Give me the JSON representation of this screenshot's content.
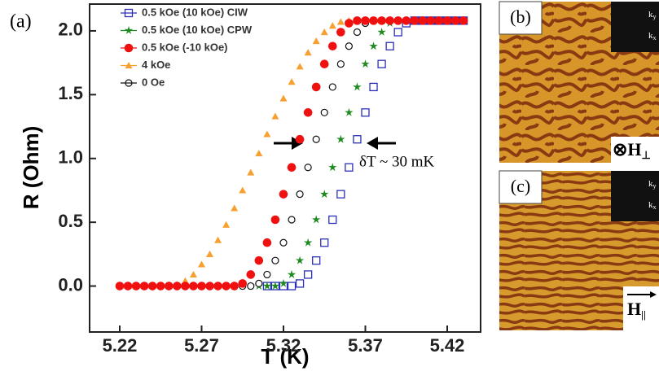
{
  "chart_data": {
    "type": "scatter",
    "panel_label": "(a)",
    "x_label": "T (K)",
    "y_label": "R (Ohm)",
    "annotation": "δT ~ 30 mK",
    "x": [
      5.22,
      5.225,
      5.23,
      5.235,
      5.24,
      5.245,
      5.25,
      5.255,
      5.26,
      5.265,
      5.27,
      5.275,
      5.28,
      5.285,
      5.29,
      5.295,
      5.3,
      5.305,
      5.31,
      5.315,
      5.32,
      5.325,
      5.33,
      5.335,
      5.34,
      5.345,
      5.35,
      5.355,
      5.36,
      5.365,
      5.37,
      5.375,
      5.38,
      5.385,
      5.39,
      5.395,
      5.4,
      5.405,
      5.41,
      5.415,
      5.42,
      5.425,
      5.43
    ],
    "series": [
      {
        "name": "0.5 kOe (10 kOe) CIW",
        "color": "#2b2fb8",
        "marker": "open-square",
        "values": [
          null,
          null,
          null,
          null,
          null,
          null,
          null,
          null,
          null,
          null,
          null,
          null,
          null,
          null,
          null,
          null,
          null,
          null,
          0,
          0,
          0,
          0,
          0.02,
          0.09,
          0.2,
          0.34,
          0.52,
          0.72,
          0.93,
          1.15,
          1.36,
          1.56,
          1.74,
          1.88,
          1.99,
          2.06,
          2.08,
          2.08,
          2.08,
          2.08,
          2.08,
          2.08,
          2.08
        ]
      },
      {
        "name": "0.5 kOe (10 kOe) CPW",
        "color": "#1f8a1f",
        "marker": "star",
        "values": [
          null,
          null,
          null,
          null,
          null,
          null,
          null,
          null,
          null,
          null,
          null,
          null,
          null,
          null,
          0,
          0,
          0,
          0,
          0,
          0,
          0.02,
          0.09,
          0.2,
          0.34,
          0.52,
          0.72,
          0.93,
          1.15,
          1.36,
          1.56,
          1.74,
          1.88,
          1.99,
          2.06,
          2.08,
          2.08,
          2.08,
          2.08,
          2.08,
          2.08,
          2.08,
          2.08,
          2.08
        ]
      },
      {
        "name": "0.5 kOe (-10 kOe)",
        "color": "#f01010",
        "marker": "filled-circle",
        "values": [
          0,
          0,
          0,
          0,
          0,
          0,
          0,
          0,
          0,
          0,
          0,
          0,
          0,
          0,
          0,
          0.02,
          0.09,
          0.2,
          0.34,
          0.52,
          0.72,
          0.93,
          1.15,
          1.36,
          1.56,
          1.74,
          1.88,
          1.99,
          2.06,
          2.08,
          2.08,
          2.08,
          2.08,
          2.08,
          2.08,
          2.08,
          2.08,
          2.08,
          2.08,
          2.08,
          2.08,
          2.08,
          2.08
        ]
      },
      {
        "name": "4 kOe",
        "color": "#f7a030",
        "marker": "triangle",
        "values": [
          0,
          0,
          0,
          0,
          0,
          0,
          0,
          0.01,
          0.04,
          0.09,
          0.17,
          0.25,
          0.36,
          0.48,
          0.61,
          0.75,
          0.89,
          1.04,
          1.19,
          1.33,
          1.47,
          1.6,
          1.72,
          1.83,
          1.92,
          1.99,
          2.04,
          2.07,
          2.08,
          2.08,
          2.08,
          2.08,
          2.08,
          2.08,
          2.08,
          2.08,
          2.08,
          2.08,
          2.08,
          2.08,
          2.08,
          2.08,
          2.08
        ]
      },
      {
        "name": "0 Oe",
        "color": "#111111",
        "marker": "open-circle",
        "values": [
          null,
          null,
          null,
          null,
          null,
          null,
          null,
          null,
          null,
          null,
          null,
          null,
          null,
          null,
          0,
          0,
          0,
          0.02,
          0.09,
          0.2,
          0.34,
          0.52,
          0.72,
          0.93,
          1.15,
          1.36,
          1.56,
          1.74,
          1.88,
          1.99,
          2.06,
          2.08,
          2.08,
          2.08,
          2.08,
          2.08,
          2.08,
          2.08,
          2.08,
          2.08,
          2.08,
          2.08,
          2.08
        ]
      }
    ],
    "xlim": [
      5.2016,
      5.4404
    ],
    "ylim": [
      -0.36,
      2.21
    ],
    "xticks": [
      5.22,
      5.27,
      5.32,
      5.37,
      5.42
    ],
    "yticks": [
      {
        "value": 0,
        "label": "0.0"
      },
      0.5,
      {
        "value": 1,
        "label": "1.0"
      },
      1.5,
      {
        "value": 2,
        "label": "2.0"
      }
    ],
    "legend": "top-left"
  },
  "panels": [
    {
      "label": "(b)",
      "field": "⊗H",
      "field_sub": "⊥",
      "inset": [
        {
          "text": "k",
          "sub": "y"
        },
        {
          "text": "k",
          "sub": "x"
        }
      ]
    },
    {
      "label": "(c)",
      "field": "H",
      "field_sub": "||",
      "inset": [
        {
          "text": "k",
          "sub": "y"
        },
        {
          "text": "k",
          "sub": "x"
        }
      ]
    }
  ]
}
